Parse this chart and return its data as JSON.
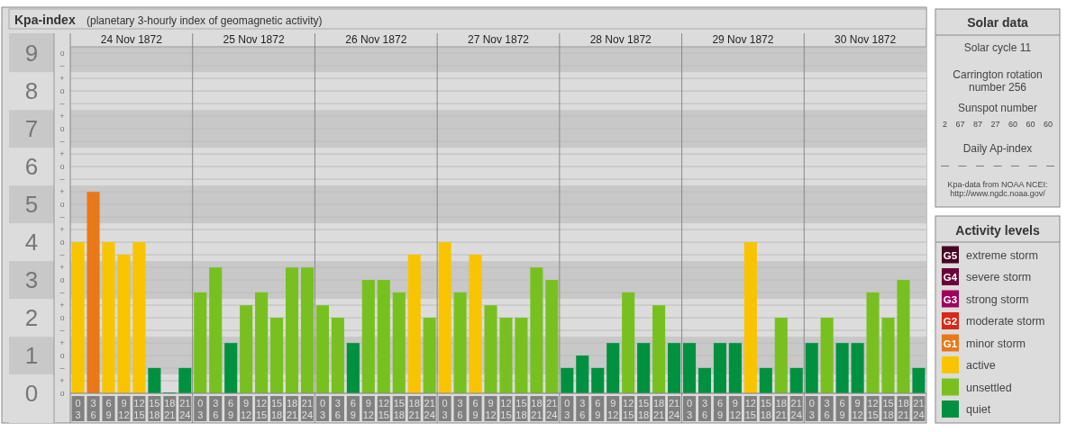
{
  "chart_data": [
    {
      "type": "bar",
      "title": "Kpa-index",
      "subtitle": "(planetary 3-hourly index of geomagnetic activity)",
      "categories": [
        "0\n3",
        "3\n6",
        "6\n9",
        "9\n12",
        "12\n15",
        "15\n18",
        "18\n21",
        "21\n24",
        "0\n3",
        "3\n6",
        "6\n9",
        "9\n12",
        "12\n15",
        "15\n18",
        "18\n21",
        "21\n24",
        "0\n3",
        "3\n6",
        "6\n9",
        "9\n12",
        "12\n15",
        "15\n18",
        "18\n21",
        "21\n24",
        "0\n3",
        "3\n6",
        "6\n9",
        "9\n12",
        "12\n15",
        "15\n18",
        "18\n21",
        "21\n24",
        "0\n3",
        "3\n6",
        "6\n9",
        "9\n12",
        "12\n15",
        "15\n18",
        "18\n21",
        "21\n24",
        "0\n3",
        "3\n6",
        "6\n9",
        "9\n12",
        "12\n15",
        "15\n18",
        "18\n21",
        "21\n24",
        "0\n3",
        "3\n6",
        "6\n9",
        "9\n12",
        "12\n15",
        "15\n18",
        "18\n21",
        "21\n24"
      ],
      "stacked": true,
      "series": [
        {
          "name": "extreme storm",
          "color": "#4a0022",
          "values": [
            null,
            null,
            null,
            null,
            null,
            null,
            null,
            null,
            null,
            null,
            null,
            null,
            null,
            null,
            null,
            null,
            null,
            null,
            null,
            null,
            null,
            null,
            null,
            null,
            null,
            null,
            null,
            null,
            null,
            null,
            null,
            null,
            null,
            null,
            null,
            null,
            null,
            null,
            null,
            null,
            null,
            null,
            null,
            null,
            null,
            null,
            null,
            null,
            null,
            null,
            null,
            null,
            null,
            null,
            null,
            null
          ]
        },
        {
          "name": "severe storm",
          "color": "#6c0038",
          "values": [
            null,
            null,
            null,
            null,
            null,
            null,
            null,
            null,
            null,
            null,
            null,
            null,
            null,
            null,
            null,
            null,
            null,
            null,
            null,
            null,
            null,
            null,
            null,
            null,
            null,
            null,
            null,
            null,
            null,
            null,
            null,
            null,
            null,
            null,
            null,
            null,
            null,
            null,
            null,
            null,
            null,
            null,
            null,
            null,
            null,
            null,
            null,
            null,
            null,
            null,
            null,
            null,
            null,
            null,
            null,
            null
          ]
        },
        {
          "name": "strong storm",
          "color": "#a0005c",
          "values": [
            null,
            null,
            null,
            null,
            null,
            null,
            null,
            null,
            null,
            null,
            null,
            null,
            null,
            null,
            null,
            null,
            null,
            null,
            null,
            null,
            null,
            null,
            null,
            null,
            null,
            null,
            null,
            null,
            null,
            null,
            null,
            null,
            null,
            null,
            null,
            null,
            null,
            null,
            null,
            null,
            null,
            null,
            null,
            null,
            null,
            null,
            null,
            null,
            null,
            null,
            null,
            null,
            null,
            null,
            null,
            null
          ]
        },
        {
          "name": "moderate storm",
          "color": "#d82818",
          "values": [
            null,
            null,
            null,
            null,
            null,
            null,
            null,
            null,
            null,
            null,
            null,
            null,
            null,
            null,
            null,
            null,
            null,
            null,
            null,
            null,
            null,
            null,
            null,
            null,
            null,
            null,
            null,
            null,
            null,
            null,
            null,
            null,
            null,
            null,
            null,
            null,
            null,
            null,
            null,
            null,
            null,
            null,
            null,
            null,
            null,
            null,
            null,
            null,
            null,
            null,
            null,
            null,
            null,
            null,
            null,
            null
          ]
        },
        {
          "name": "minor storm",
          "color": "#e87818",
          "values": [
            null,
            5.33,
            null,
            null,
            null,
            null,
            null,
            null,
            null,
            null,
            null,
            null,
            null,
            null,
            null,
            null,
            null,
            null,
            null,
            null,
            null,
            null,
            null,
            null,
            null,
            null,
            null,
            null,
            null,
            null,
            null,
            null,
            null,
            null,
            null,
            null,
            null,
            null,
            null,
            null,
            null,
            null,
            null,
            null,
            null,
            null,
            null,
            null,
            null,
            null,
            null,
            null,
            null,
            null,
            null,
            null
          ]
        },
        {
          "name": "active",
          "color": "#f8c400",
          "values": [
            4,
            null,
            4,
            3.67,
            4,
            null,
            null,
            null,
            null,
            null,
            null,
            null,
            null,
            null,
            null,
            null,
            null,
            null,
            null,
            null,
            null,
            null,
            3.67,
            null,
            4,
            null,
            3.67,
            null,
            null,
            null,
            null,
            null,
            null,
            null,
            null,
            null,
            null,
            null,
            null,
            null,
            null,
            null,
            null,
            null,
            4,
            null,
            null,
            null,
            null,
            null,
            null,
            null,
            null,
            null,
            null,
            null
          ]
        },
        {
          "name": "unsettled",
          "color": "#78c020",
          "values": [
            null,
            null,
            null,
            null,
            null,
            null,
            null,
            null,
            2.67,
            3.33,
            null,
            2.33,
            2.67,
            2,
            3.33,
            3.33,
            2.33,
            2,
            null,
            3,
            3,
            2.67,
            null,
            2,
            null,
            2.67,
            null,
            2.33,
            2,
            2,
            3.33,
            3,
            null,
            null,
            null,
            null,
            2.67,
            null,
            2.33,
            null,
            null,
            null,
            null,
            null,
            null,
            null,
            2,
            null,
            null,
            2,
            null,
            null,
            2.67,
            2,
            3,
            null
          ]
        },
        {
          "name": "quiet",
          "color": "#009140",
          "values": [
            null,
            null,
            null,
            null,
            null,
            0.67,
            0,
            0.67,
            null,
            null,
            1.33,
            null,
            null,
            null,
            null,
            null,
            null,
            null,
            1.33,
            null,
            null,
            null,
            null,
            null,
            null,
            null,
            null,
            null,
            null,
            null,
            null,
            null,
            0.67,
            1,
            0.67,
            1.33,
            null,
            1.33,
            null,
            1.33,
            1.33,
            0.67,
            1.33,
            1.33,
            null,
            0.67,
            null,
            0.67,
            1.33,
            null,
            1.33,
            1.33,
            null,
            null,
            null,
            0.67
          ]
        }
      ],
      "ylim": [
        0,
        9.17
      ],
      "yticks": [
        0,
        1,
        2,
        3,
        4,
        5,
        6,
        7,
        8,
        9
      ],
      "annotations": [
        "o",
        "+",
        "–",
        "o",
        "+",
        "–",
        "o",
        "+",
        "–",
        "o",
        "+",
        "–",
        "o",
        "+",
        "–",
        "o",
        "+",
        "–",
        "o",
        "+",
        "–",
        "o",
        "+",
        "–",
        "o",
        "+",
        "–",
        "o",
        "G5",
        "G4",
        "G3",
        "G2",
        "G1"
      ],
      "x2lim": [
        "1872-11-24T00:00",
        "1872-12-01T00:00"
      ],
      "x2ticks": [
        {
          "value": "1872-11-24T12:00",
          "label": "24 Nov 1872"
        },
        {
          "value": "1872-11-25T12:00",
          "label": "25 Nov 1872"
        },
        {
          "value": "1872-11-26T12:00",
          "label": "26 Nov 1872"
        },
        {
          "value": "1872-11-27T12:00",
          "label": "27 Nov 1872"
        },
        {
          "value": "1872-11-28T12:00",
          "label": "28 Nov 1872"
        },
        {
          "value": "1872-11-29T12:00",
          "label": "29 Nov 1872"
        },
        {
          "value": "1872-11-30T12:00",
          "label": "30 Nov 1872"
        }
      ],
      "grid": true,
      "legend": "right",
      "legend_title": "Activity levels"
    },
    {
      "type": "other",
      "title": "Solar data",
      "annotations": [
        "Solar cycle 11",
        "Carrington rotation number 256",
        "Sunspot number",
        "2 67 87 27 60 60 60",
        "Daily Ap-index",
        "— — — — — — —",
        "Kpa-data from NOAA NCEI: http://www.ngdc.noaa.gov/"
      ]
    }
  ]
}
